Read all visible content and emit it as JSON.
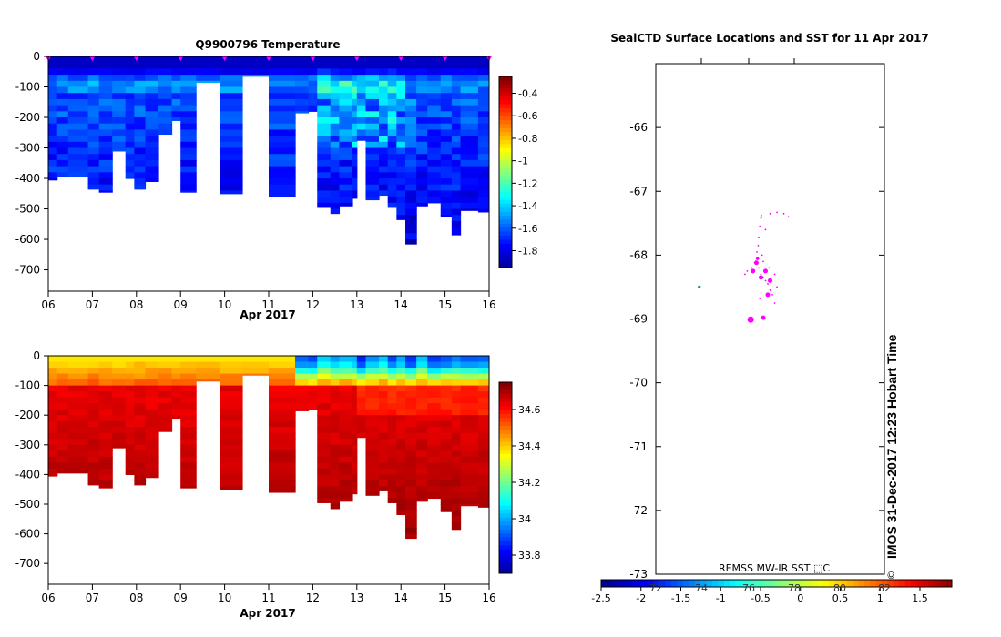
{
  "colors": {
    "jet": [
      "#00008f",
      "#0000ff",
      "#0080ff",
      "#00ffff",
      "#80ff80",
      "#ffff00",
      "#ff8000",
      "#ff0000",
      "#800000"
    ],
    "marker": "#ff00ff",
    "island": "#00a060"
  },
  "chart_data": [
    {
      "type": "heatmap",
      "title": "Q9900796  Temperature",
      "xlabel": "Apr 2017",
      "ylabel": "",
      "x_ticks": [
        "06",
        "07",
        "08",
        "09",
        "10",
        "11",
        "12",
        "13",
        "14",
        "15",
        "16"
      ],
      "xlim": [
        6,
        16
      ],
      "y_ticks": [
        "0",
        "-100",
        "-200",
        "-300",
        "-400",
        "-500",
        "-600",
        "-700"
      ],
      "ylim": [
        -770,
        0
      ],
      "colorbar_ticks": [
        "-0.4",
        "-0.6",
        "-0.8",
        "-1",
        "-1.2",
        "-1.4",
        "-1.6",
        "-1.8"
      ],
      "colorbar_range": [
        -1.95,
        -0.25
      ],
      "profile_markers_x": [
        6,
        7,
        8,
        9,
        10,
        11,
        12,
        13,
        14,
        15,
        16
      ],
      "profiles": [
        [
          6.0,
          6.2,
          405
        ],
        [
          6.2,
          6.45,
          395
        ],
        [
          6.45,
          6.9,
          395
        ],
        [
          6.9,
          7.15,
          435
        ],
        [
          7.15,
          7.45,
          445
        ],
        [
          7.45,
          7.75,
          310
        ],
        [
          7.75,
          7.95,
          400
        ],
        [
          7.95,
          8.2,
          435
        ],
        [
          8.2,
          8.5,
          410
        ],
        [
          8.5,
          8.8,
          255
        ],
        [
          8.8,
          9.0,
          210
        ],
        [
          9.0,
          9.35,
          445
        ],
        [
          9.35,
          9.9,
          85
        ],
        [
          9.9,
          10.4,
          450
        ],
        [
          10.4,
          11.0,
          65
        ],
        [
          11.0,
          11.6,
          460
        ],
        [
          11.6,
          11.9,
          185
        ],
        [
          11.9,
          12.1,
          180
        ],
        [
          12.1,
          12.4,
          495
        ],
        [
          12.4,
          12.6,
          515
        ],
        [
          12.6,
          12.9,
          490
        ],
        [
          12.9,
          13.0,
          465
        ],
        [
          13.0,
          13.2,
          275
        ],
        [
          13.2,
          13.5,
          470
        ],
        [
          13.5,
          13.7,
          455
        ],
        [
          13.7,
          13.9,
          495
        ],
        [
          13.9,
          14.1,
          535
        ],
        [
          14.1,
          14.35,
          615
        ],
        [
          14.35,
          14.6,
          490
        ],
        [
          14.6,
          14.9,
          480
        ],
        [
          14.9,
          15.15,
          525
        ],
        [
          15.15,
          15.35,
          585
        ],
        [
          15.35,
          15.75,
          505
        ],
        [
          15.75,
          16.0,
          510
        ]
      ]
    },
    {
      "type": "heatmap",
      "title": "",
      "xlabel": "Apr 2017",
      "ylabel": "",
      "x_ticks": [
        "06",
        "07",
        "08",
        "09",
        "10",
        "11",
        "12",
        "13",
        "14",
        "15",
        "16"
      ],
      "xlim": [
        6,
        16
      ],
      "y_ticks": [
        "0",
        "-100",
        "-200",
        "-300",
        "-400",
        "-500",
        "-600",
        "-700"
      ],
      "ylim": [
        -770,
        0
      ],
      "colorbar_ticks": [
        "34.6",
        "34.4",
        "34.2",
        "34",
        "33.8"
      ],
      "colorbar_range": [
        33.7,
        34.75
      ]
    },
    {
      "type": "scatter",
      "title": "SealCTD Surface Locations and SST for 11 Apr 2017",
      "y_ticks": [
        "-66",
        "-67",
        "-68",
        "-69",
        "-70",
        "-71",
        "-72",
        "-73"
      ],
      "ylim": [
        -73,
        -65
      ],
      "top_tick_x": [
        "",
        "",
        ""
      ],
      "bottom_inner_ticks": [
        "72",
        "74",
        "76",
        "78",
        "80",
        "82"
      ],
      "sst_label": "REMSS MW-IR SST ⬚C",
      "colorbar_ticks": [
        "-2.5",
        "-2",
        "-1.5",
        "-1",
        "-0.5",
        "0",
        "0.5",
        "1",
        "1.5"
      ],
      "colorbar_range": [
        -2.5,
        1.9
      ],
      "points": [
        [
          0.462,
          -67.38
        ],
        [
          0.46,
          -67.42
        ],
        [
          0.455,
          -67.55
        ],
        [
          0.45,
          -67.72
        ],
        [
          0.448,
          -67.85
        ],
        [
          0.442,
          -67.95
        ],
        [
          0.44,
          -68.1
        ],
        [
          0.45,
          -68.2
        ],
        [
          0.43,
          -68.25
        ],
        [
          0.46,
          -68.3
        ],
        [
          0.47,
          -68.35
        ],
        [
          0.48,
          -68.4
        ],
        [
          0.49,
          -68.45
        ],
        [
          0.5,
          -68.55
        ],
        [
          0.51,
          -68.62
        ],
        [
          0.52,
          -68.3
        ],
        [
          0.53,
          -68.5
        ],
        [
          0.495,
          -68.2
        ],
        [
          0.47,
          -68.1
        ],
        [
          0.465,
          -68.0
        ],
        [
          0.48,
          -67.6
        ],
        [
          0.5,
          -67.35
        ],
        [
          0.53,
          -67.33
        ],
        [
          0.56,
          -67.35
        ],
        [
          0.58,
          -67.4
        ],
        [
          0.455,
          -68.68
        ],
        [
          0.4,
          -68.25
        ],
        [
          0.39,
          -68.3
        ],
        [
          0.42,
          -68.2
        ],
        [
          0.52,
          -68.75
        ]
      ],
      "big_points": [
        [
          0.44,
          -68.12,
          2.5
        ],
        [
          0.425,
          -68.25,
          2.5
        ],
        [
          0.46,
          -68.35,
          2.5
        ],
        [
          0.48,
          -68.25,
          2.5
        ],
        [
          0.5,
          -68.4,
          2.5
        ],
        [
          0.49,
          -68.62,
          2.5
        ],
        [
          0.47,
          -68.98,
          2.5
        ],
        [
          0.415,
          -69.01,
          3.5
        ],
        [
          0.445,
          -68.05,
          2
        ]
      ],
      "island_point": [
        0.19,
        -68.5
      ]
    }
  ],
  "credit": "IMOS 31-Dec-2017 12:23 Hobart Time",
  "copyright": "©"
}
